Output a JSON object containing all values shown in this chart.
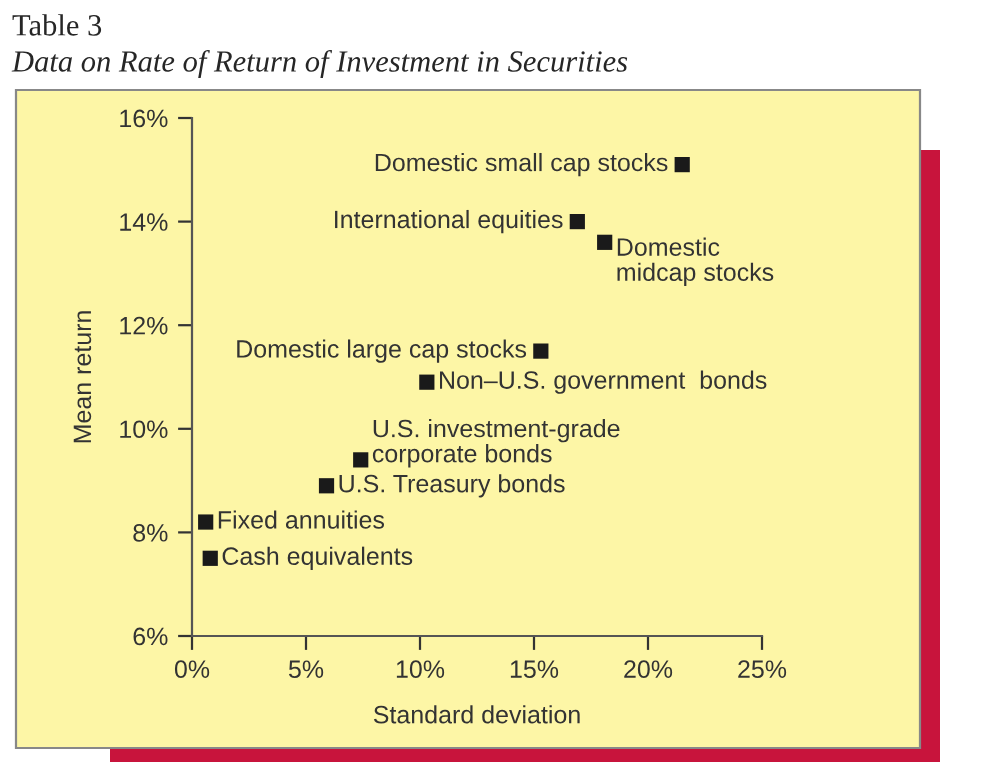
{
  "chart_data": {
    "type": "scatter",
    "title": "Table 3",
    "subtitle": "Data on Rate of Return of Investment in Securities",
    "xlabel": "Standard deviation",
    "ylabel": "Mean return",
    "x": [
      21.5,
      16.9,
      18.1,
      15.3,
      10.3,
      7.4,
      5.9,
      0.6,
      0.8
    ],
    "series": [
      {
        "color": "#1a1a1a",
        "values": [
          15.1,
          14.0,
          13.6,
          11.5,
          10.9,
          9.4,
          8.9,
          8.2,
          7.5
        ]
      }
    ],
    "annotations": [
      {
        "text": "Domestic small cap stocks",
        "x": 21.5,
        "y": 15.1
      },
      {
        "text": "International equities",
        "x": 16.9,
        "y": 14.0
      },
      {
        "text": "Domestic\nmidcap stocks",
        "x": 18.1,
        "y": 13.6
      },
      {
        "text": "Domestic large cap stocks",
        "x": 15.3,
        "y": 11.5
      },
      {
        "text": "Non–U.S. government  bonds",
        "x": 10.3,
        "y": 10.9
      },
      {
        "text": "U.S. investment-grade\ncorporate bonds",
        "x": 7.4,
        "y": 9.4
      },
      {
        "text": "U.S. Treasury bonds",
        "x": 5.9,
        "y": 8.9
      },
      {
        "text": "Fixed annuities",
        "x": 0.6,
        "y": 8.2
      },
      {
        "text": "Cash equivalents",
        "x": 0.8,
        "y": 7.5
      }
    ],
    "marker": "square",
    "grid": false,
    "legend": false,
    "xlim": [
      0,
      25
    ],
    "ylim": [
      6,
      16
    ],
    "xticks": [
      {
        "value": 0,
        "label": "0%"
      },
      {
        "value": 5,
        "label": "5%"
      },
      {
        "value": 10,
        "label": "10%"
      },
      {
        "value": 15,
        "label": "15%"
      },
      {
        "value": 20,
        "label": "20%"
      },
      {
        "value": 25,
        "label": "25%"
      }
    ],
    "yticks": [
      {
        "value": 6,
        "label": "6%"
      },
      {
        "value": 8,
        "label": "8%"
      },
      {
        "value": 10,
        "label": "10%"
      },
      {
        "value": 12,
        "label": "12%"
      },
      {
        "value": 14,
        "label": "14%"
      },
      {
        "value": 16,
        "label": "16%"
      }
    ]
  }
}
